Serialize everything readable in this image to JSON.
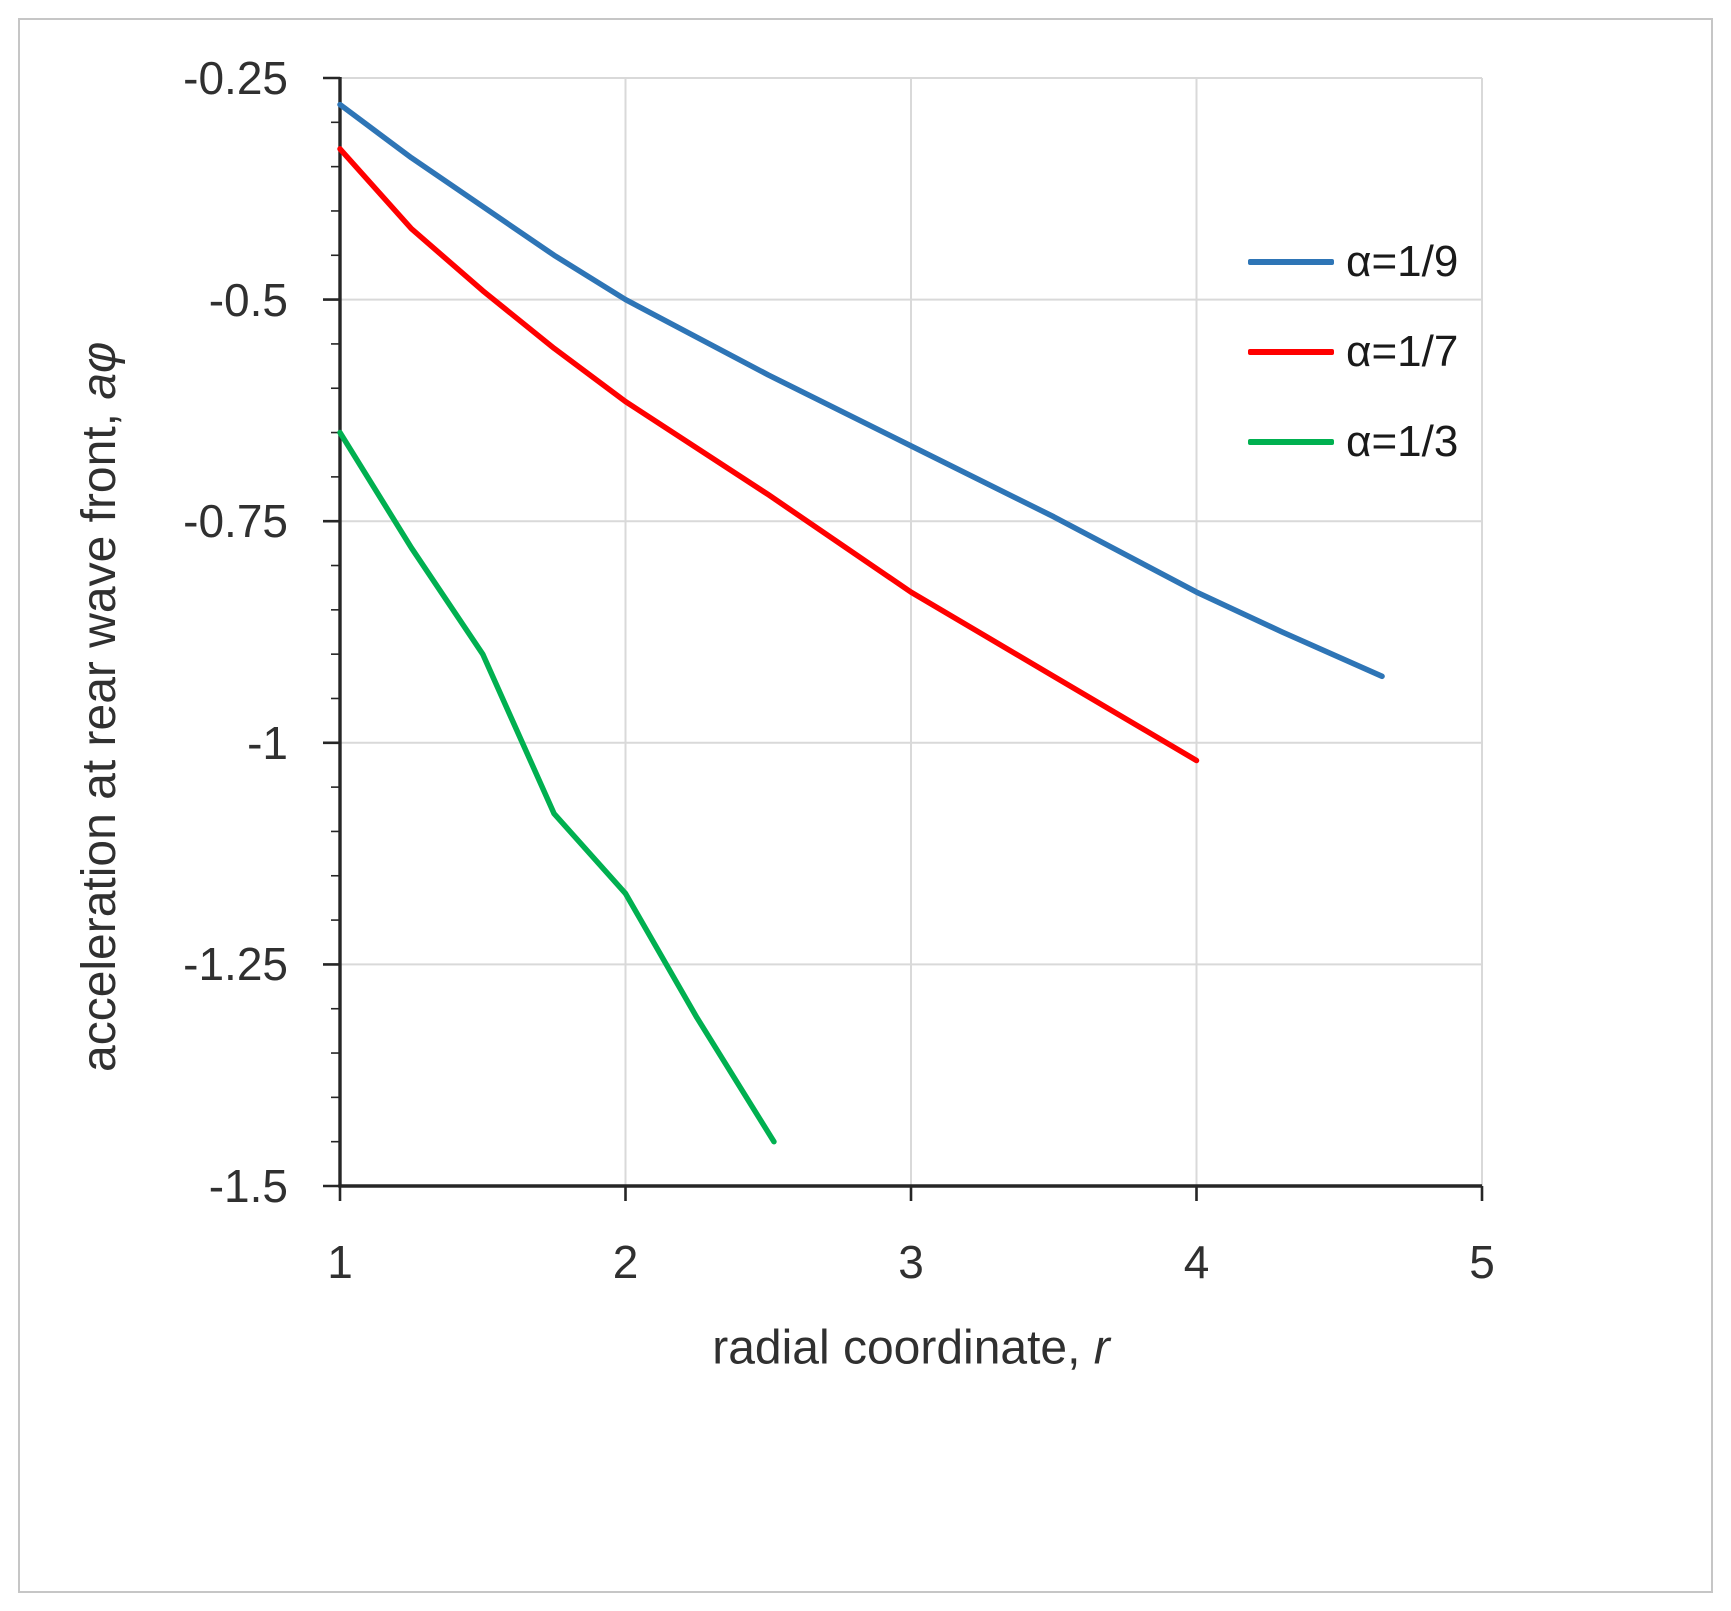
{
  "figure": {
    "x_axis_title_main": "radial coordinate, ",
    "x_axis_title_symbol": "r",
    "y_axis_title_main": "acceleration at rear wave front, ",
    "y_axis_title_symbol": "aφ"
  },
  "chart_data": {
    "type": "line",
    "title": "",
    "xlabel": "radial coordinate, r",
    "ylabel": "acceleration at rear wave front, aφ",
    "xlim": [
      1,
      5
    ],
    "ylim": [
      -1.5,
      -0.25
    ],
    "grid": true,
    "legend_position": "upper right",
    "x_ticks": [
      1,
      2,
      3,
      4,
      5
    ],
    "x_tick_labels": [
      "1",
      "2",
      "3",
      "4",
      "5"
    ],
    "y_ticks": [
      -0.25,
      -0.5,
      -0.75,
      -1,
      -1.25,
      -1.5
    ],
    "y_tick_labels": [
      "-0.25",
      "-0.5",
      "-0.75",
      "-1",
      "-1.25",
      "-1.5"
    ],
    "y_minor_step": 0.05,
    "colors": {
      "axis": "#262626",
      "gridline": "#d9d9d9",
      "blue_series": "#2E75B6",
      "red_series": "#FF0000",
      "green_series": "#00B050"
    },
    "series": [
      {
        "name": "α=1/9",
        "color": "#2E75B6",
        "points": [
          [
            1,
            -0.28
          ],
          [
            1.25,
            -0.34
          ],
          [
            1.5,
            -0.395
          ],
          [
            1.75,
            -0.45
          ],
          [
            2,
            -0.5
          ],
          [
            2.5,
            -0.585
          ],
          [
            3,
            -0.665
          ],
          [
            3.5,
            -0.745
          ],
          [
            4,
            -0.83
          ],
          [
            4.3,
            -0.875
          ],
          [
            4.65,
            -0.925
          ]
        ]
      },
      {
        "name": "α=1/7",
        "color": "#FF0000",
        "points": [
          [
            1,
            -0.33
          ],
          [
            1.25,
            -0.42
          ],
          [
            1.5,
            -0.49
          ],
          [
            1.75,
            -0.555
          ],
          [
            2,
            -0.615
          ],
          [
            2.5,
            -0.72
          ],
          [
            3,
            -0.83
          ],
          [
            3.5,
            -0.925
          ],
          [
            4,
            -1.02
          ]
        ]
      },
      {
        "name": "α=1/3",
        "color": "#00B050",
        "points": [
          [
            1,
            -0.65
          ],
          [
            1.25,
            -0.78
          ],
          [
            1.5,
            -0.9
          ],
          [
            1.75,
            -1.08
          ],
          [
            2,
            -1.17
          ],
          [
            2.25,
            -1.31
          ],
          [
            2.52,
            -1.45
          ]
        ]
      }
    ]
  }
}
